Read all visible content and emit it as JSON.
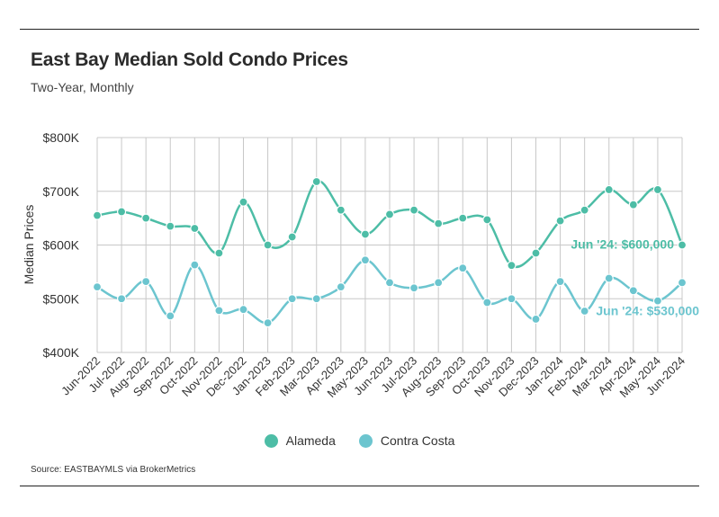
{
  "title": "East Bay Median Sold Condo Prices",
  "subtitle": "Two-Year, Monthly",
  "source": "Source:  EASTBAYMLS via BrokerMetrics",
  "colors": {
    "alameda": "#4dbda6",
    "contra_costa": "#6cc5cf",
    "grid": "#c8c8c8"
  },
  "chart_data": {
    "type": "line",
    "title": "East Bay Median Sold Condo Prices",
    "subtitle": "Two-Year, Monthly",
    "ylabel": "Median Prices",
    "xlabel": "",
    "ylim": [
      400000,
      800000
    ],
    "yticks": [
      400000,
      500000,
      600000,
      700000,
      800000
    ],
    "ytick_labels": [
      "$400K",
      "$500K",
      "$600K",
      "$700K",
      "$800K"
    ],
    "grid": true,
    "legend_position": "bottom",
    "categories": [
      "Jun-2022",
      "Jul-2022",
      "Aug-2022",
      "Sep-2022",
      "Oct-2022",
      "Nov-2022",
      "Dec-2022",
      "Jan-2023",
      "Feb-2023",
      "Mar-2023",
      "Apr-2023",
      "May-2023",
      "Jun-2023",
      "Jul-2023",
      "Aug-2023",
      "Sep-2023",
      "Oct-2023",
      "Nov-2023",
      "Dec-2023",
      "Jan-2024",
      "Feb-2024",
      "Mar-2024",
      "Apr-2024",
      "May-2024",
      "Jun-2024"
    ],
    "series": [
      {
        "name": "Alameda",
        "color": "#4dbda6",
        "values": [
          655000,
          662000,
          650000,
          635000,
          631000,
          585000,
          680000,
          600000,
          615000,
          718000,
          665000,
          620000,
          657000,
          665000,
          640000,
          650000,
          647000,
          562000,
          585000,
          645000,
          665000,
          703000,
          675000,
          703000,
          600000
        ]
      },
      {
        "name": "Contra Costa",
        "color": "#6cc5cf",
        "values": [
          522000,
          500000,
          532000,
          468000,
          563000,
          478000,
          480000,
          455000,
          500000,
          500000,
          522000,
          572000,
          530000,
          520000,
          530000,
          557000,
          493000,
          500000,
          462000,
          532000,
          477000,
          538000,
          515000,
          496000,
          530000
        ]
      }
    ],
    "annotations": [
      {
        "series": "Alameda",
        "text": "Jun '24: $600,000"
      },
      {
        "series": "Contra Costa",
        "text": "Jun '24: $530,000"
      }
    ]
  }
}
